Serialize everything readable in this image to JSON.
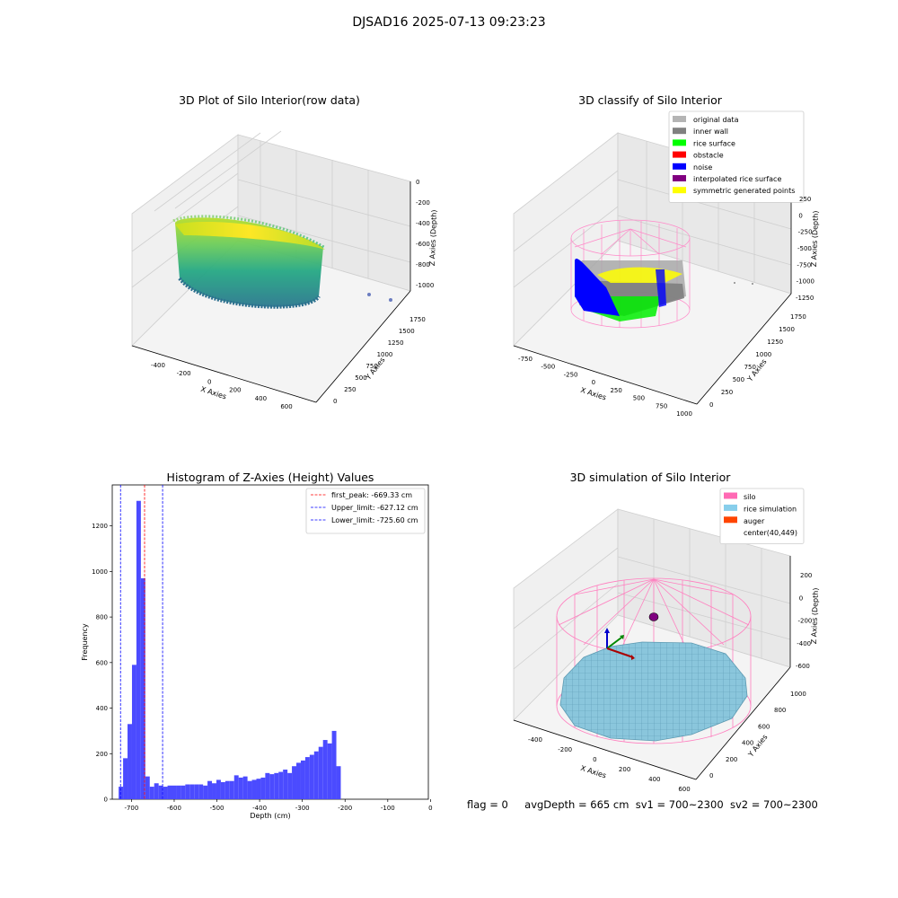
{
  "figure": {
    "suptitle": "DJSAD16 2025-07-13 09:23:23",
    "footer": {
      "flag": "flag = 0",
      "avg_depth": "avgDepth = 665 cm",
      "sv1": "sv1 = 700~2300",
      "sv2": "sv2 = 700~2300"
    }
  },
  "chart_data": [
    {
      "id": "raw",
      "type": "scatter",
      "projection": "3d",
      "title": "3D Plot of Silo Interior(row data)",
      "xlabel": "X Axies",
      "ylabel": "Y Axies",
      "zlabel": "Z Axies (Depth)",
      "x_ticks": [
        "-400",
        "-200",
        "0",
        "200",
        "400",
        "600"
      ],
      "y_ticks": [
        "0",
        "250",
        "500",
        "750",
        "1000",
        "1250",
        "1500",
        "1750"
      ],
      "z_ticks": [
        "0",
        "-200",
        "-400",
        "-600",
        "-800",
        "-1000"
      ],
      "colormap": "viridis",
      "ring": {
        "cx": 20,
        "cy": 650,
        "r": 460,
        "z_top": -300,
        "z_bottom": -1060
      },
      "outliers": [
        {
          "x": 620,
          "y": 80,
          "z": -1030
        },
        {
          "x": 660,
          "y": -60,
          "z": -1040
        }
      ]
    },
    {
      "id": "classify",
      "type": "scatter",
      "projection": "3d",
      "title": "3D classify of Silo Interior",
      "xlabel": "X Axies",
      "ylabel": "Y Axies",
      "zlabel": "Z Axies (Depth)",
      "x_ticks": [
        "-750",
        "-500",
        "-250",
        "0",
        "250",
        "500",
        "750",
        "1000"
      ],
      "y_ticks": [
        "0",
        "250",
        "500",
        "750",
        "1000",
        "1250",
        "1500",
        "1750"
      ],
      "z_ticks": [
        "250",
        "0",
        "-250",
        "-500",
        "-750",
        "-1000",
        "-1250"
      ],
      "legend": [
        {
          "label": "original data",
          "color": "#b4b4b4"
        },
        {
          "label": "inner wall",
          "color": "#808080"
        },
        {
          "label": "rice surface",
          "color": "#00ff00"
        },
        {
          "label": "obstacle",
          "color": "#ff0000"
        },
        {
          "label": "noise",
          "color": "#0000ff"
        },
        {
          "label": "interpolated rice surface",
          "color": "#800080"
        },
        {
          "label": "symmetric generated points",
          "color": "#ffff00"
        }
      ],
      "legend_loc": "upper right"
    },
    {
      "id": "hist",
      "type": "bar",
      "title": "Histogram of Z-Axies (Height) Values",
      "xlabel": "Depth (cm)",
      "ylabel": "Frequency",
      "color": "#4b4bff",
      "xlim": [
        -745,
        -5
      ],
      "ylim": [
        0,
        1380
      ],
      "x_ticks": [
        -700,
        -600,
        -500,
        -400,
        -300,
        -200,
        -100,
        0
      ],
      "y_ticks": [
        0,
        200,
        400,
        600,
        800,
        1000,
        1200
      ],
      "bin_start": -730,
      "bin_width": 10.4,
      "counts": [
        55,
        180,
        330,
        590,
        1310,
        970,
        100,
        55,
        70,
        60,
        55,
        60,
        60,
        60,
        60,
        65,
        65,
        65,
        65,
        60,
        80,
        70,
        85,
        75,
        80,
        80,
        105,
        95,
        100,
        80,
        85,
        90,
        95,
        115,
        110,
        115,
        120,
        130,
        115,
        145,
        160,
        170,
        185,
        195,
        210,
        230,
        260,
        245,
        300,
        145
      ],
      "lines": [
        {
          "label": "first_peak: -669.33 cm",
          "value": -669.33,
          "color": "#ff0000"
        },
        {
          "label": "Upper_limit: -627.12 cm",
          "value": -627.12,
          "color": "#0000ff"
        },
        {
          "label": "Lower_limit: -725.60 cm",
          "value": -725.6,
          "color": "#0000ff"
        }
      ],
      "legend_loc": "upper right"
    },
    {
      "id": "simulation",
      "type": "scatter",
      "projection": "3d",
      "title": "3D simulation of Silo Interior",
      "xlabel": "X Axies",
      "ylabel": "Y Axies",
      "zlabel": "Z Axies (Depth)",
      "x_ticks": [
        "-400",
        "-200",
        "0",
        "200",
        "400",
        "600"
      ],
      "y_ticks": [
        "0",
        "200",
        "400",
        "600",
        "800",
        "1000"
      ],
      "z_ticks": [
        "200",
        "0",
        "-200",
        "-400",
        "-600"
      ],
      "legend": [
        {
          "label": "silo",
          "color": "#ff69b4"
        },
        {
          "label": "rice simulation",
          "color": "#87ceeb"
        },
        {
          "label": "auger",
          "color": "#ff4500"
        },
        {
          "label": "center(40,449)",
          "color": ""
        }
      ],
      "legend_loc": "upper right"
    }
  ]
}
